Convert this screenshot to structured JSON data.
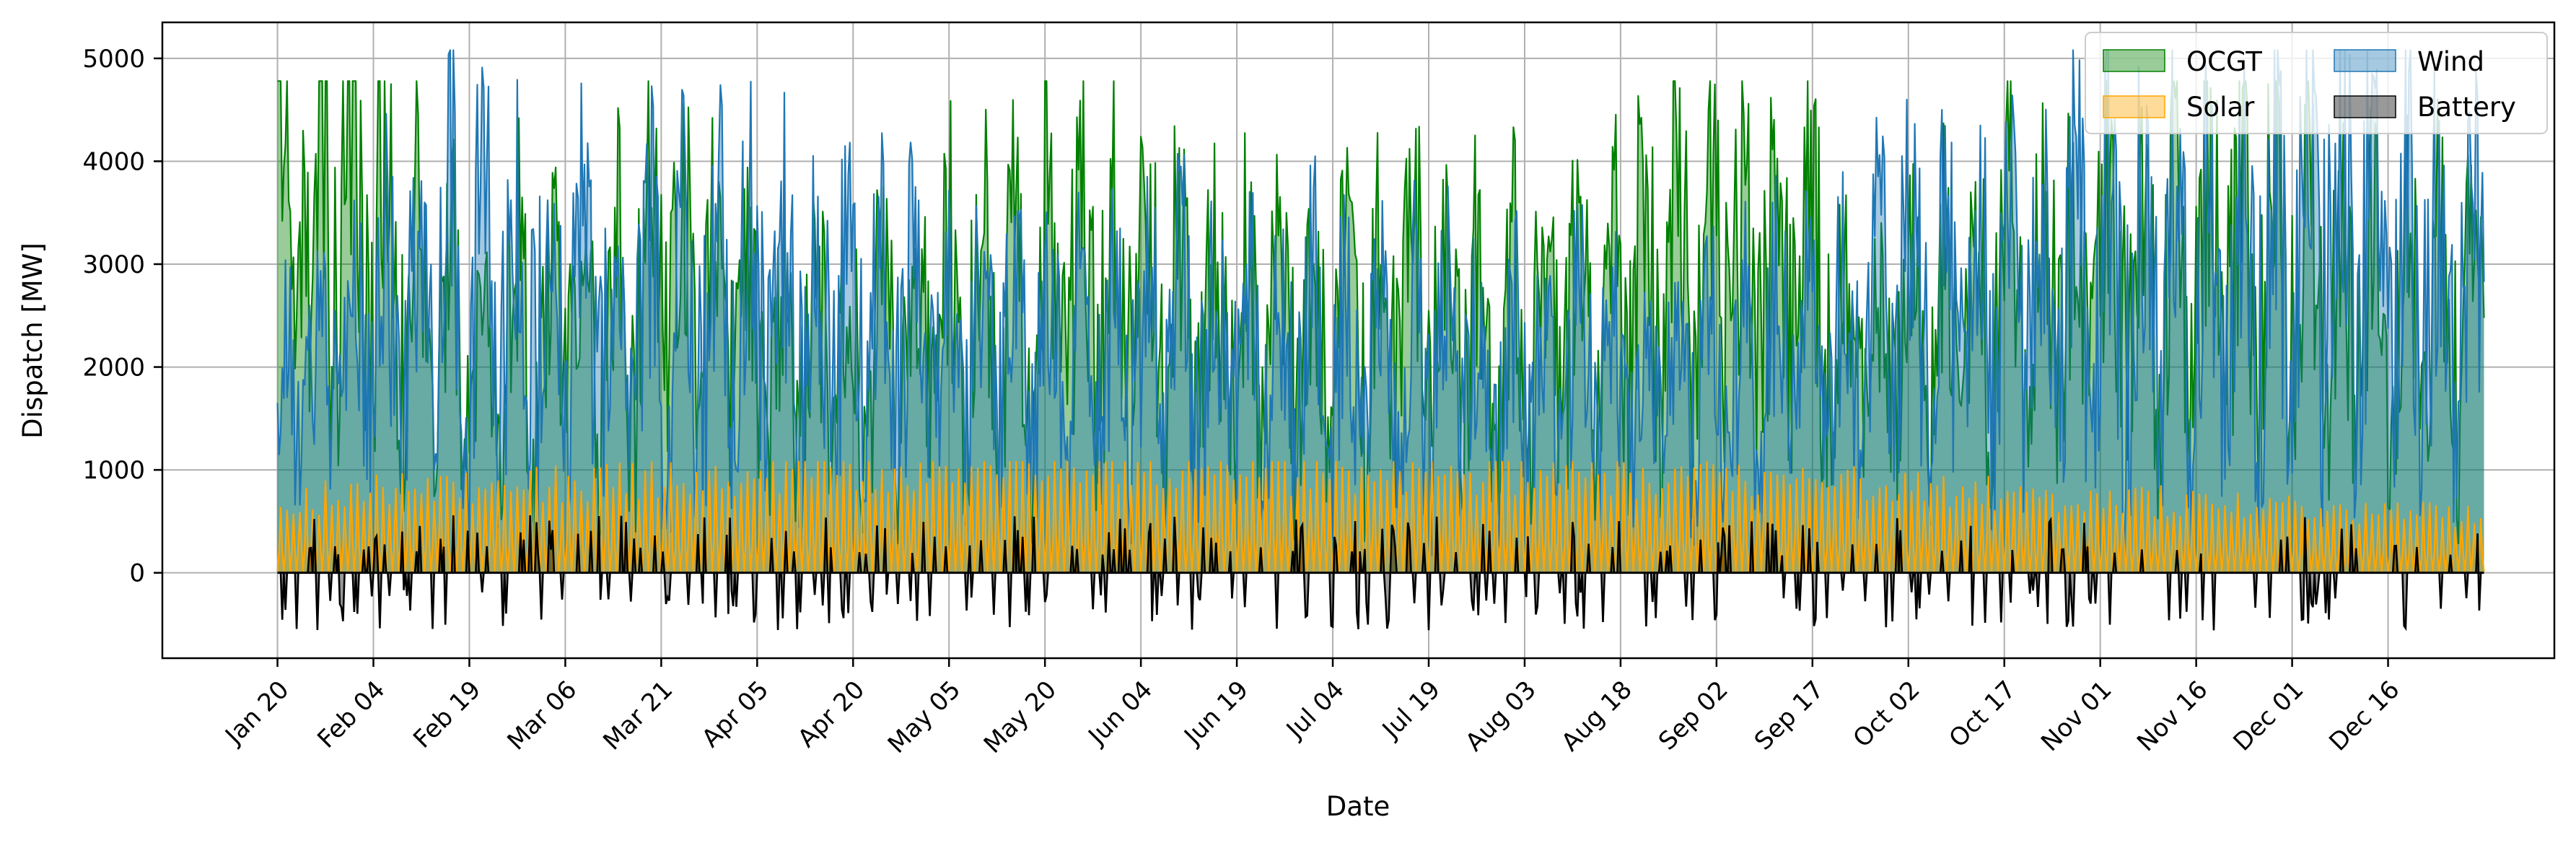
{
  "chart_data": {
    "type": "area",
    "title": "",
    "xlabel": "Date",
    "ylabel": "Dispatch [MW]",
    "x_range": [
      "2023-01-20",
      "2023-12-31"
    ],
    "xlim": [
      "2023-01-02",
      "2024-01-11"
    ],
    "ylim": [
      -830,
      5350
    ],
    "grid": true,
    "legend_placement": "top-right",
    "x_ticks": [
      "2023-01-20",
      "2023-02-04",
      "2023-02-19",
      "2023-03-06",
      "2023-03-21",
      "2023-04-05",
      "2023-04-20",
      "2023-05-05",
      "2023-05-20",
      "2023-06-04",
      "2023-06-19",
      "2023-07-04",
      "2023-07-19",
      "2023-08-03",
      "2023-08-18",
      "2023-09-02",
      "2023-09-17",
      "2023-10-02",
      "2023-10-17",
      "2023-11-01",
      "2023-11-16",
      "2023-12-01",
      "2023-12-16"
    ],
    "x_tick_labels": [
      "Jan 20",
      "Feb 04",
      "Feb 19",
      "Mar 06",
      "Mar 21",
      "Apr 05",
      "Apr 20",
      "May 05",
      "May 20",
      "Jun 04",
      "Jun 19",
      "Jul 04",
      "Jul 19",
      "Aug 03",
      "Aug 18",
      "Sep 02",
      "Sep 17",
      "Oct 02",
      "Oct 17",
      "Nov 01",
      "Nov 16",
      "Dec 01",
      "Dec 16"
    ],
    "y_ticks": [
      0,
      1000,
      2000,
      3000,
      4000,
      5000
    ],
    "y_tick_labels": [
      "0",
      "1000",
      "2000",
      "3000",
      "4000",
      "5000"
    ],
    "series": [
      {
        "name": "OCGT",
        "color": "#008000",
        "fill_opacity": 0.4,
        "dates": [
          "2023-01-20",
          "2023-02-01",
          "2023-02-10",
          "2023-02-18",
          "2023-03-01",
          "2023-03-12",
          "2023-03-24",
          "2023-04-05",
          "2023-04-18",
          "2023-05-01",
          "2023-05-14",
          "2023-05-27",
          "2023-06-08",
          "2023-06-21",
          "2023-07-04",
          "2023-07-17",
          "2023-07-30",
          "2023-08-12",
          "2023-08-25",
          "2023-09-07",
          "2023-09-18",
          "2023-09-26",
          "2023-10-05",
          "2023-10-17",
          "2023-10-29",
          "2023-11-10",
          "2023-11-22",
          "2023-12-04",
          "2023-12-16",
          "2023-12-31"
        ],
        "values": [
          4100,
          3500,
          2800,
          2300,
          2400,
          2500,
          2800,
          2100,
          2200,
          2400,
          2600,
          2700,
          2700,
          2300,
          2300,
          2600,
          2300,
          2700,
          2900,
          3000,
          2800,
          2000,
          2300,
          2700,
          2900,
          3100,
          3000,
          2900,
          2400,
          2600
        ],
        "peak": 4780
      },
      {
        "name": "Wind",
        "color": "#1f77b4",
        "fill_opacity": 0.4,
        "dates": [
          "2023-01-20",
          "2023-02-01",
          "2023-02-12",
          "2023-02-20",
          "2023-03-01",
          "2023-03-12",
          "2023-03-24",
          "2023-04-05",
          "2023-04-18",
          "2023-05-01",
          "2023-05-14",
          "2023-05-27",
          "2023-06-08",
          "2023-06-21",
          "2023-07-04",
          "2023-07-17",
          "2023-07-30",
          "2023-08-12",
          "2023-08-25",
          "2023-09-07",
          "2023-09-20",
          "2023-10-02",
          "2023-10-15",
          "2023-10-28",
          "2023-11-10",
          "2023-11-22",
          "2023-12-01",
          "2023-12-08",
          "2023-12-16",
          "2023-12-31"
        ],
        "values": [
          1600,
          2300,
          2600,
          3000,
          2700,
          2500,
          2500,
          2600,
          2500,
          2300,
          2100,
          2000,
          2200,
          2100,
          2100,
          2000,
          1900,
          2000,
          1800,
          2000,
          2100,
          2600,
          2700,
          2800,
          2800,
          2600,
          3300,
          3500,
          3100,
          2600
        ],
        "peak": 5080
      },
      {
        "name": "Solar",
        "color": "#ffa500",
        "fill_opacity": 0.4,
        "dates": [
          "2023-01-20",
          "2023-02-15",
          "2023-03-15",
          "2023-04-15",
          "2023-05-15",
          "2023-06-15",
          "2023-07-15",
          "2023-08-15",
          "2023-09-15",
          "2023-10-15",
          "2023-11-15",
          "2023-12-15",
          "2023-12-31"
        ],
        "values": [
          700,
          850,
          900,
          980,
          1000,
          1000,
          980,
          950,
          900,
          800,
          700,
          600,
          550
        ],
        "peak": 1080
      },
      {
        "name": "Battery",
        "color": "#000000",
        "fill_opacity": 0.4,
        "charge_min": -560,
        "discharge_max": 560
      }
    ]
  }
}
